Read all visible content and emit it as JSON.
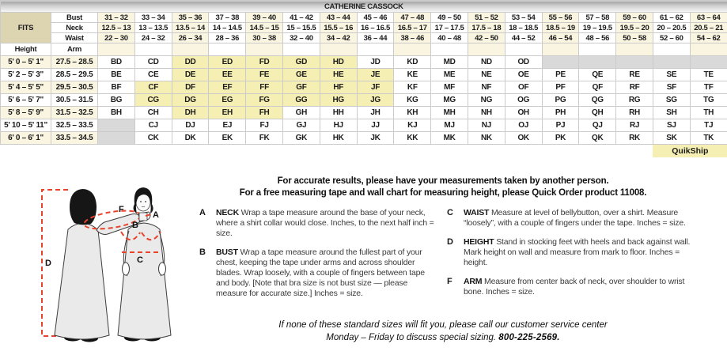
{
  "title": "CATHERINE CASSOCK",
  "table": {
    "fits_label": "FITS",
    "row_labels": {
      "bust": "Bust",
      "neck": "Neck",
      "waist": "Waist",
      "height": "Height",
      "arm": "Arm"
    },
    "bust": [
      "31 – 32",
      "33 – 34",
      "35 – 36",
      "37 – 38",
      "39 – 40",
      "41 – 42",
      "43 – 44",
      "45 – 46",
      "47 – 48",
      "49 – 50",
      "51 – 52",
      "53 – 54",
      "55 – 56",
      "57 – 58",
      "59 – 60",
      "61 – 62",
      "63 – 64"
    ],
    "neck": [
      "12.5 – 13",
      "13 – 13.5",
      "13.5 – 14",
      "14 – 14.5",
      "14.5 – 15",
      "15 – 15.5",
      "15.5 – 16",
      "16 – 16.5",
      "16.5 – 17",
      "17 – 17.5",
      "17.5 – 18",
      "18 – 18.5",
      "18.5 – 19",
      "19 – 19.5",
      "19.5 – 20",
      "20 – 20.5",
      "20.5 – 21"
    ],
    "waist": [
      "22 – 30",
      "24 – 32",
      "26 – 34",
      "28 – 36",
      "30 – 38",
      "32 – 40",
      "34 – 42",
      "36 – 44",
      "38 – 46",
      "40 – 48",
      "42 – 50",
      "44 – 52",
      "46 – 54",
      "48 – 56",
      "50 – 58",
      "52 – 60",
      "54 – 62"
    ],
    "rows": [
      {
        "height": "5' 0 – 5' 1\"",
        "arm": "27.5 – 28.5",
        "codes": [
          "BD",
          "CD",
          "DD",
          "ED",
          "FD",
          "GD",
          "HD",
          "JD",
          "KD",
          "MD",
          "ND",
          "OD",
          "",
          "",
          "",
          "",
          ""
        ],
        "quikship": [
          2,
          3,
          4,
          5,
          6
        ],
        "na": [
          12,
          13,
          14,
          15,
          16
        ]
      },
      {
        "height": "5' 2 – 5' 3\"",
        "arm": "28.5 – 29.5",
        "codes": [
          "BE",
          "CE",
          "DE",
          "EE",
          "FE",
          "GE",
          "HE",
          "JE",
          "KE",
          "ME",
          "NE",
          "OE",
          "PE",
          "QE",
          "RE",
          "SE",
          "TE"
        ],
        "quikship": [
          2,
          3,
          4,
          5,
          6,
          7
        ],
        "na": []
      },
      {
        "height": "5' 4 – 5' 5\"",
        "arm": "29.5 – 30.5",
        "codes": [
          "BF",
          "CF",
          "DF",
          "EF",
          "FF",
          "GF",
          "HF",
          "JF",
          "KF",
          "MF",
          "NF",
          "OF",
          "PF",
          "QF",
          "RF",
          "SF",
          "TF"
        ],
        "quikship": [
          1,
          2,
          3,
          4,
          5,
          6,
          7
        ],
        "na": []
      },
      {
        "height": "5' 6 – 5' 7\"",
        "arm": "30.5 – 31.5",
        "codes": [
          "BG",
          "CG",
          "DG",
          "EG",
          "FG",
          "GG",
          "HG",
          "JG",
          "KG",
          "MG",
          "NG",
          "OG",
          "PG",
          "QG",
          "RG",
          "SG",
          "TG"
        ],
        "quikship": [
          1,
          2,
          3,
          4,
          5,
          6,
          7
        ],
        "na": []
      },
      {
        "height": "5' 8 – 5' 9\"",
        "arm": "31.5 – 32.5",
        "codes": [
          "BH",
          "CH",
          "DH",
          "EH",
          "FH",
          "GH",
          "HH",
          "JH",
          "KH",
          "MH",
          "NH",
          "OH",
          "PH",
          "QH",
          "RH",
          "SH",
          "TH"
        ],
        "quikship": [
          2,
          3,
          4
        ],
        "na": []
      },
      {
        "height": "5' 10 – 5' 11\"",
        "arm": "32.5 – 33.5",
        "codes": [
          "",
          "CJ",
          "DJ",
          "EJ",
          "FJ",
          "GJ",
          "HJ",
          "JJ",
          "KJ",
          "MJ",
          "NJ",
          "OJ",
          "PJ",
          "QJ",
          "RJ",
          "SJ",
          "TJ"
        ],
        "quikship": [],
        "na": [
          0
        ]
      },
      {
        "height": "6' 0 – 6' 1\"",
        "arm": "33.5 – 34.5",
        "codes": [
          "",
          "CK",
          "DK",
          "EK",
          "FK",
          "GK",
          "HK",
          "JK",
          "KK",
          "MK",
          "NK",
          "OK",
          "PK",
          "QK",
          "RK",
          "SK",
          "TK"
        ],
        "quikship": [],
        "na": [
          0
        ]
      }
    ],
    "quikship_label": "QuikShip"
  },
  "intro": {
    "line1": "For accurate results, please have your measurements taken by another person.",
    "line2": "For a free measuring tape and wall chart for measuring height, please Quick Order product 11008."
  },
  "instructions": [
    {
      "letter": "A",
      "term": "NECK",
      "text": "Wrap a tape measure around the base of your neck, where a shirt collar would close. Inches, to the next half inch = size."
    },
    {
      "letter": "B",
      "term": "BUST",
      "text": "Wrap a tape measure around the fullest part of your chest, keeping the tape under arms and across shoulder blades. Wrap loosely, with a couple of fingers between tape and body. [Note that bra size is not bust size — please measure for accurate size.] Inches = size."
    },
    {
      "letter": "C",
      "term": "WAIST",
      "text": "Measure at level of bellybutton, over a shirt. Measure “loosely”, with a couple of fingers under the tape. Inches = size."
    },
    {
      "letter": "D",
      "term": "HEIGHT",
      "text": "Stand in stocking feet with heels and back against wall. Mark height on wall and measure from mark to floor. Inches = height."
    },
    {
      "letter": "F",
      "term": "ARM",
      "text": "Measure from center back of neck, over shoulder to wrist bone. Inches = size."
    }
  ],
  "footer": {
    "line1": "If none of these standard sizes will fit you, please call our customer service center",
    "line2": "Monday – Friday to discuss special sizing.",
    "phone": "800-225-2569."
  },
  "figure": {
    "labels": {
      "neck": "A",
      "bust": "B",
      "waist": "C",
      "height": "D",
      "arm": "F"
    }
  },
  "colors": {
    "quikship_yellow": "#f6efb3",
    "header_cream": "#faf5e0",
    "fits_tan": "#ddd4b2",
    "unavailable_gray": "#d9d9d9",
    "accent_red": "#e8432c"
  }
}
